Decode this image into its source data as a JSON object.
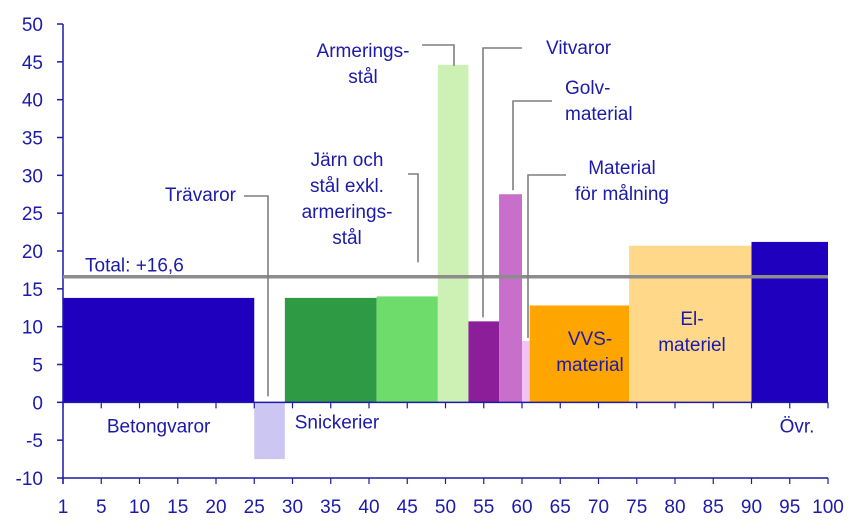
{
  "chart_data": {
    "type": "bar",
    "variant": "variable-width",
    "title": "",
    "xlabel": "",
    "ylabel": "",
    "xlim": [
      0,
      100
    ],
    "ylim": [
      -10,
      50
    ],
    "x_ticks": [
      "1",
      "5",
      "10",
      "15",
      "20",
      "25",
      "30",
      "35",
      "40",
      "45",
      "50",
      "55",
      "60",
      "65",
      "70",
      "75",
      "80",
      "85",
      "90",
      "95",
      "100"
    ],
    "y_ticks": [
      "50",
      "45",
      "40",
      "35",
      "30",
      "25",
      "20",
      "15",
      "10",
      "5",
      "0",
      "-5",
      "-10"
    ],
    "y_tick_values": [
      50,
      45,
      40,
      35,
      30,
      25,
      20,
      15,
      10,
      5,
      0,
      -5,
      -10
    ],
    "total": {
      "label": "Total: +16,6",
      "value": 16.6,
      "color": "#8c8c8c"
    },
    "bars": [
      {
        "name": "Betongvaror",
        "x0": 0,
        "x1": 25,
        "value": 13.8,
        "color": "#1e00be",
        "label": [
          "Betongvaror"
        ]
      },
      {
        "name": "Trävaror",
        "x0": 25,
        "x1": 29,
        "value": -7.5,
        "color": "#cbc6f2",
        "label": [
          "Trävaror"
        ]
      },
      {
        "name": "Snickerier",
        "x0": 29,
        "x1": 41,
        "value": 13.8,
        "color": "#2f9a44",
        "label": [
          "Snickerier"
        ]
      },
      {
        "name": "Järn och stål exkl. armeringsstål",
        "x0": 41,
        "x1": 49,
        "value": 14.0,
        "color": "#6ddc6a",
        "label": [
          "Järn och",
          "stål exkl.",
          "armerings-",
          "stål"
        ]
      },
      {
        "name": "Armeringsstål",
        "x0": 49,
        "x1": 53,
        "value": 44.6,
        "color": "#cdf0b5",
        "label": [
          "Armerings-",
          "stål"
        ]
      },
      {
        "name": "Vitvaror",
        "x0": 53,
        "x1": 57,
        "value": 10.7,
        "color": "#8c1e9a",
        "label": [
          "Vitvaror"
        ]
      },
      {
        "name": "Golvmaterial",
        "x0": 57,
        "x1": 60,
        "value": 27.5,
        "color": "#c86ecb",
        "label": [
          "Golv-",
          "material"
        ]
      },
      {
        "name": "Material för målning",
        "x0": 60,
        "x1": 61,
        "value": 8.1,
        "color": "#f3c4f3",
        "label": [
          "Material",
          "för målning"
        ]
      },
      {
        "name": "VVS-material",
        "x0": 61,
        "x1": 74,
        "value": 12.8,
        "color": "#ffa500",
        "label": [
          "VVS-",
          "material"
        ]
      },
      {
        "name": "El-materiel",
        "x0": 74,
        "x1": 90,
        "value": 20.7,
        "color": "#ffd88a",
        "label": [
          "El-",
          "materiel"
        ]
      },
      {
        "name": "Övr.",
        "x0": 90,
        "x1": 100,
        "value": 21.2,
        "color": "#1e00be",
        "label": [
          "Övr."
        ]
      }
    ],
    "colors": {
      "axis": "#1c1aa8",
      "text": "#1c1aa8",
      "leader": "#7f7f7f"
    }
  }
}
